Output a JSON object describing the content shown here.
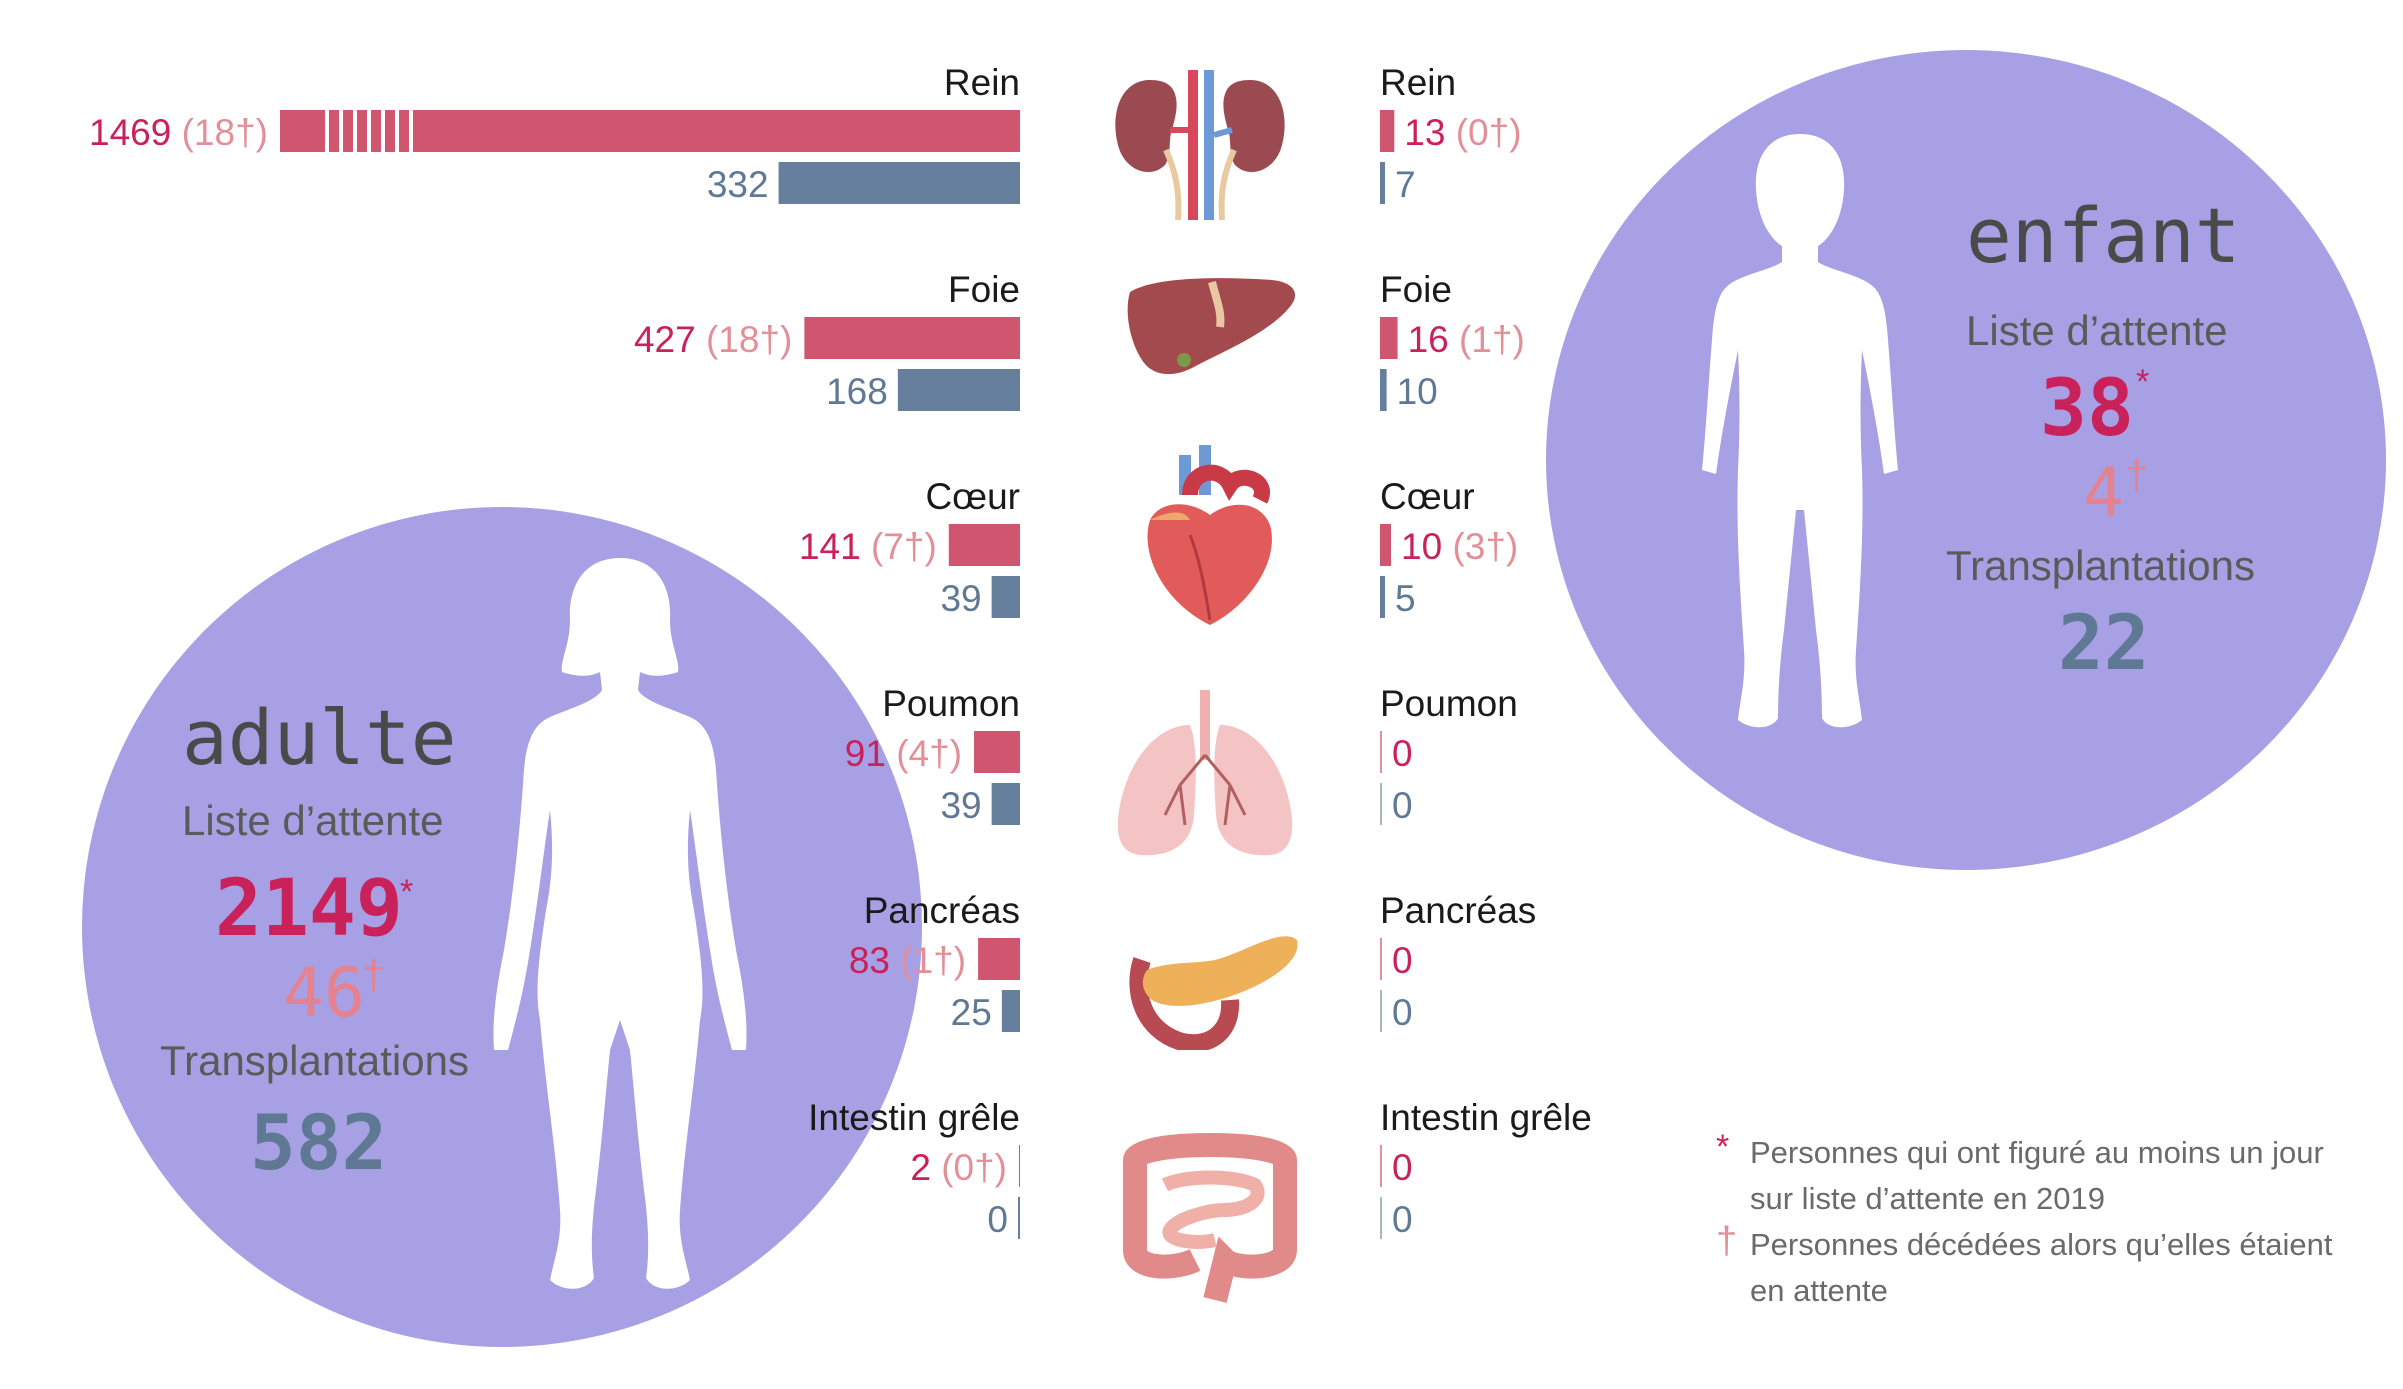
{
  "colors": {
    "waiting": "#d0566f",
    "transplants": "#657f9c",
    "circle": "#a8a0e4",
    "dead_text": "#e38f98"
  },
  "chart_data": {
    "type": "bar",
    "categories": [
      "Rein",
      "Foie",
      "Cœur",
      "Poumon",
      "Pancréas",
      "Intestin grêle"
    ],
    "adulte": {
      "waiting": [
        1469,
        427,
        141,
        91,
        83,
        2
      ],
      "deaths": [
        18,
        18,
        7,
        4,
        1,
        0
      ],
      "transplants": [
        332,
        168,
        39,
        39,
        25,
        0
      ],
      "waiting_text": [
        "1469",
        "427",
        "141",
        "91",
        "83",
        "2"
      ],
      "deaths_text": [
        "(18†)",
        "(18†)",
        "(7†)",
        "(4†)",
        "(1†)",
        "(0†)"
      ],
      "transplants_text": [
        "332",
        "168",
        "39",
        "39",
        "25",
        "0"
      ]
    },
    "enfant": {
      "waiting": [
        13,
        16,
        10,
        0,
        0,
        0
      ],
      "deaths": [
        0,
        1,
        3,
        0,
        0,
        0
      ],
      "transplants": [
        7,
        10,
        5,
        0,
        0,
        0
      ],
      "waiting_text": [
        "13",
        "16",
        "10",
        "0",
        "0",
        "0"
      ],
      "deaths_text": [
        "(0†)",
        "(1†)",
        "(3†)",
        "",
        "",
        ""
      ],
      "transplants_text": [
        "7",
        "10",
        "5",
        "0",
        "0",
        "0"
      ]
    }
  },
  "adulte": {
    "title": "adulte",
    "waiting_label": "Liste d’attente",
    "waiting_total": "2149",
    "asterisk": "*",
    "deaths_total": "46",
    "dagger": "†",
    "transplants_label": "Transplantations",
    "transplants_total": "582"
  },
  "enfant": {
    "title": "enfant",
    "waiting_label": "Liste d’attente",
    "waiting_total": "38",
    "asterisk": "*",
    "deaths_total": "4",
    "dagger": "†",
    "transplants_label": "Transplantations",
    "transplants_total": "22"
  },
  "legend": {
    "asterisk_symbol": "*",
    "asterisk_text_1": "Personnes qui ont figuré au moins un jour",
    "asterisk_text_2": "sur liste d’attente en 2019",
    "dagger_symbol": "†",
    "dagger_text_1": "Personnes décédées alors qu’elles étaient",
    "dagger_text_2": "en attente"
  },
  "icons": [
    "kidney-icon",
    "liver-icon",
    "heart-icon",
    "lungs-icon",
    "pancreas-icon",
    "intestine-icon"
  ]
}
